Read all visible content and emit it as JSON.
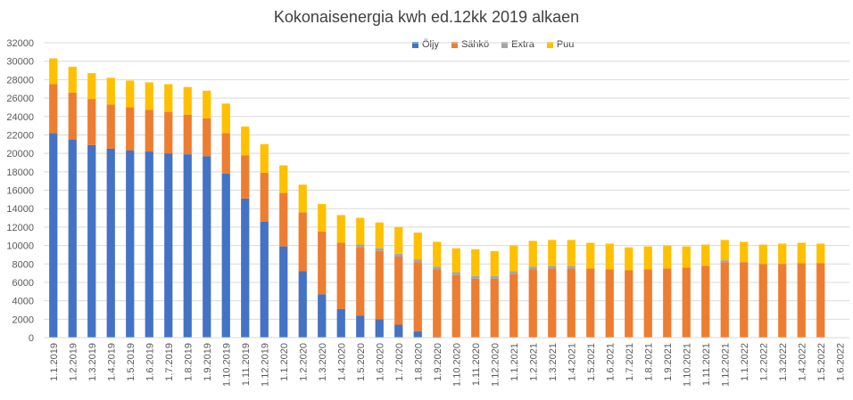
{
  "chart_data": {
    "type": "bar",
    "stacked": true,
    "title": "Kokonaisenergia kwh ed.12kk 2019 alkaen",
    "ylim": [
      0,
      32000
    ],
    "yticks": [
      "0",
      "2000",
      "4000",
      "6000",
      "8000",
      "10000",
      "12000",
      "14000",
      "16000",
      "18000",
      "20000",
      "22000",
      "24000",
      "26000",
      "28000",
      "30000",
      "32000"
    ],
    "grid": true,
    "legend_position": "top",
    "categories": [
      "1.1.2019",
      "1.2.2019",
      "1.3.2019",
      "1.4.2019",
      "1.5.2019",
      "1.6.2019",
      "1.7.2019",
      "1.8.2019",
      "1.9.2019",
      "1.10.2019",
      "1.11.2019",
      "1.12.2019",
      "1.1.2020",
      "1.2.2020",
      "1.3.2020",
      "1.4.2020",
      "1.5.2020",
      "1.6.2020",
      "1.7.2020",
      "1.8.2020",
      "1.9.2020",
      "1.10.2020",
      "1.11.2020",
      "1.12.2020",
      "1.1.2021",
      "1.2.2021",
      "1.3.2021",
      "1.4.2021",
      "1.5.2021",
      "1.6.2021",
      "1.7.2021",
      "1.8.2021",
      "1.9.2021",
      "1.10.2021",
      "1.11.2021",
      "1.12.2021",
      "1.1.2022",
      "1.2.2022",
      "1.3.2022",
      "1.4.2022",
      "1.5.2022",
      "1.6.2022"
    ],
    "series": [
      {
        "name": "Öljy",
        "color": "#4472C4",
        "values": [
          22200,
          21500,
          20900,
          20500,
          20300,
          20200,
          20000,
          19900,
          19700,
          17800,
          15100,
          12600,
          9900,
          7200,
          4700,
          3100,
          2400,
          2000,
          1400,
          700,
          100,
          0,
          0,
          0,
          0,
          0,
          0,
          0,
          0,
          0,
          0,
          0,
          0,
          0,
          0,
          0,
          0,
          0,
          0,
          0,
          0,
          0
        ]
      },
      {
        "name": "Sähkö",
        "color": "#ED7D31",
        "values": [
          5300,
          5100,
          5000,
          4800,
          4700,
          4500,
          4500,
          4300,
          4100,
          4400,
          4700,
          5300,
          5800,
          6400,
          6800,
          7200,
          7400,
          7400,
          7400,
          7500,
          7300,
          6800,
          6400,
          6400,
          6900,
          7400,
          7500,
          7500,
          7500,
          7400,
          7300,
          7400,
          7500,
          7600,
          7800,
          8200,
          8200,
          8000,
          8000,
          8100,
          8100,
          0
        ]
      },
      {
        "name": "Extra",
        "color": "#A5A5A5",
        "values": [
          0,
          0,
          0,
          0,
          0,
          0,
          0,
          0,
          0,
          0,
          0,
          0,
          0,
          0,
          0,
          0,
          300,
          300,
          300,
          300,
          300,
          300,
          300,
          300,
          300,
          300,
          300,
          300,
          0,
          0,
          0,
          0,
          0,
          0,
          0,
          200,
          0,
          0,
          0,
          0,
          0,
          0
        ]
      },
      {
        "name": "Puu",
        "color": "#FFC000",
        "values": [
          2800,
          2800,
          2800,
          2900,
          2900,
          3000,
          3000,
          3000,
          3000,
          3200,
          3100,
          3100,
          3000,
          3000,
          3000,
          3000,
          2900,
          2800,
          2900,
          2900,
          2700,
          2600,
          2900,
          2700,
          2800,
          2800,
          2800,
          2800,
          2800,
          2800,
          2500,
          2500,
          2500,
          2300,
          2300,
          2200,
          2200,
          2100,
          2200,
          2200,
          2100,
          0
        ]
      }
    ]
  }
}
